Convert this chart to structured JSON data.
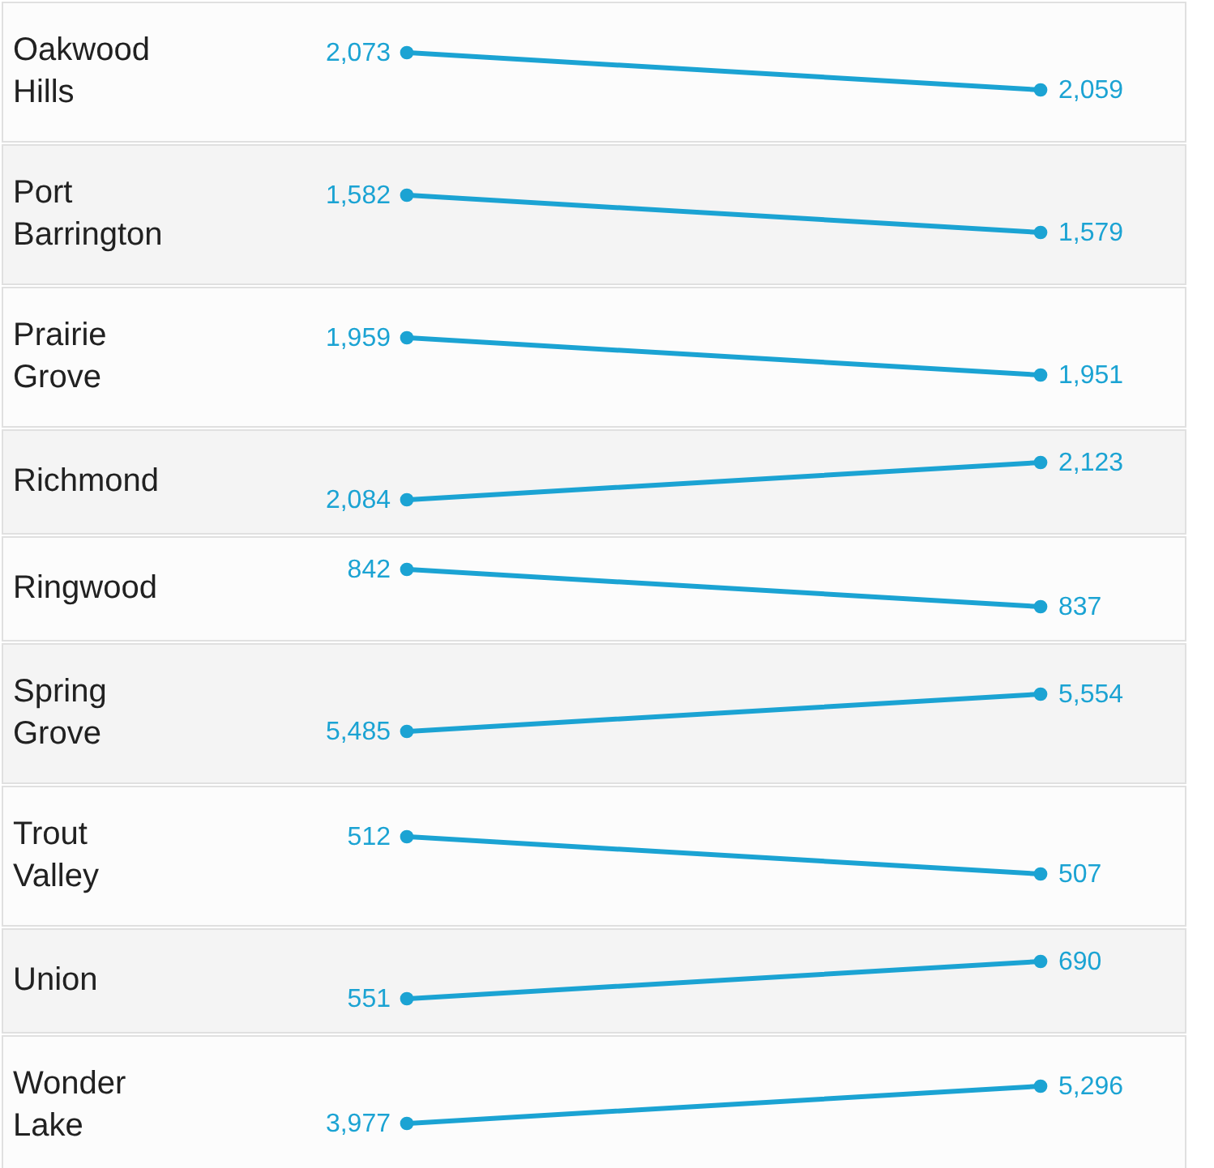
{
  "chart_data": [
    {
      "type": "line",
      "title": "Oakwood Hills",
      "categories": [
        null,
        null
      ],
      "values": [
        2073,
        2059
      ],
      "value_labels": [
        "2,073",
        "2,059"
      ],
      "color": "#1ba3d3",
      "marker": "circle",
      "line_style": "solid",
      "tick_labels": false
    },
    {
      "type": "line",
      "title": "Port Barrington",
      "categories": [
        null,
        null
      ],
      "values": [
        1582,
        1579
      ],
      "value_labels": [
        "1,582",
        "1,579"
      ],
      "color": "#1ba3d3",
      "marker": "circle",
      "line_style": "solid",
      "tick_labels": false
    },
    {
      "type": "line",
      "title": "Prairie Grove",
      "categories": [
        null,
        null
      ],
      "values": [
        1959,
        1951
      ],
      "value_labels": [
        "1,959",
        "1,951"
      ],
      "color": "#1ba3d3",
      "marker": "circle",
      "line_style": "solid",
      "tick_labels": false
    },
    {
      "type": "line",
      "title": "Richmond",
      "categories": [
        null,
        null
      ],
      "values": [
        2084,
        2123
      ],
      "value_labels": [
        "2,084",
        "2,123"
      ],
      "color": "#1ba3d3",
      "marker": "circle",
      "line_style": "solid",
      "tick_labels": false
    },
    {
      "type": "line",
      "title": "Ringwood",
      "categories": [
        null,
        null
      ],
      "values": [
        842,
        837
      ],
      "value_labels": [
        "842",
        "837"
      ],
      "color": "#1ba3d3",
      "marker": "circle",
      "line_style": "solid",
      "tick_labels": false
    },
    {
      "type": "line",
      "title": "Spring Grove",
      "categories": [
        null,
        null
      ],
      "values": [
        5485,
        5554
      ],
      "value_labels": [
        "5,485",
        "5,554"
      ],
      "color": "#1ba3d3",
      "marker": "circle",
      "line_style": "solid",
      "tick_labels": false
    },
    {
      "type": "line",
      "title": "Trout Valley",
      "categories": [
        null,
        null
      ],
      "values": [
        512,
        507
      ],
      "value_labels": [
        "512",
        "507"
      ],
      "color": "#1ba3d3",
      "marker": "circle",
      "line_style": "solid",
      "tick_labels": false
    },
    {
      "type": "line",
      "title": "Union",
      "categories": [
        null,
        null
      ],
      "values": [
        551,
        690
      ],
      "value_labels": [
        "551",
        "690"
      ],
      "color": "#1ba3d3",
      "marker": "circle",
      "line_style": "solid",
      "tick_labels": false
    },
    {
      "type": "line",
      "title": "Wonder Lake",
      "categories": [
        null,
        null
      ],
      "values": [
        3977,
        5296
      ],
      "value_labels": [
        "3,977",
        "5,296"
      ],
      "color": "#1ba3d3",
      "marker": "circle",
      "line_style": "solid",
      "tick_labels": false
    }
  ]
}
